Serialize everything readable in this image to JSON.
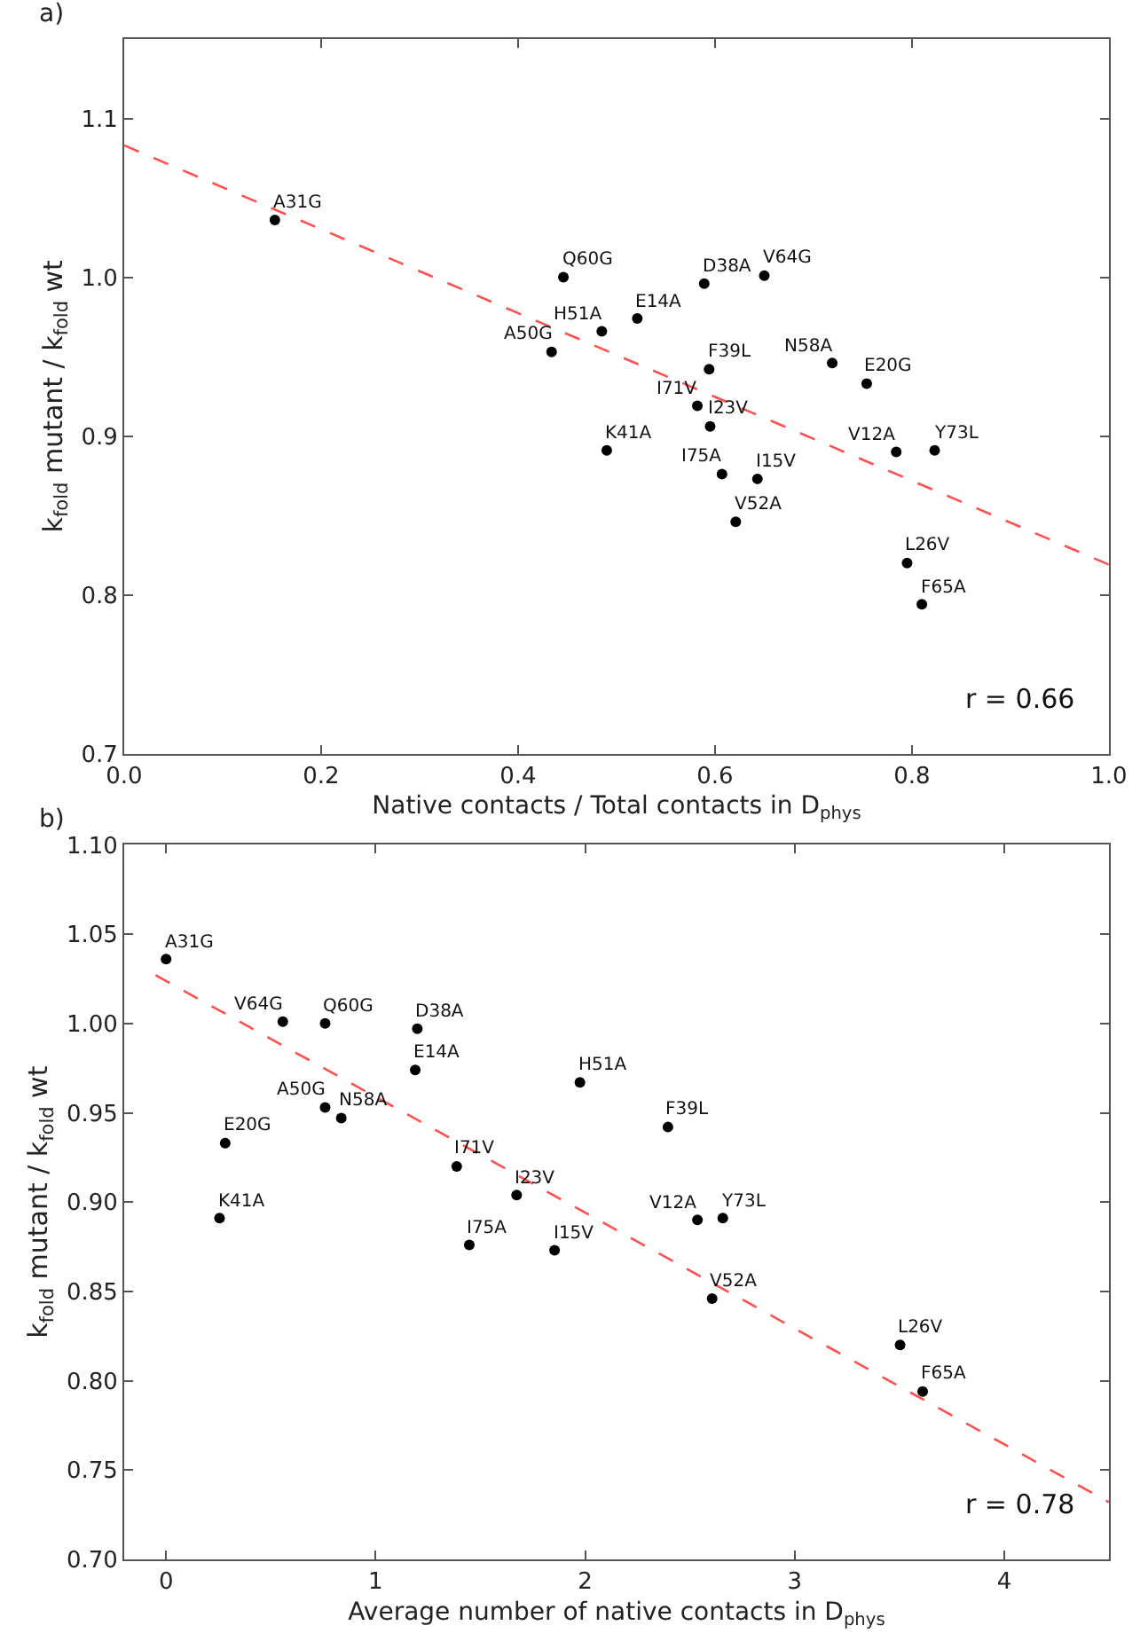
{
  "chart_data": [
    {
      "type": "scatter",
      "title": "a)",
      "xlabel": "Native contacts / Total contacts in D$_{phys}$",
      "ylabel": "k$_{fold}$ mutant / k$_{fold}$ wt",
      "xlim": [
        0,
        1
      ],
      "ylim": [
        0.7,
        1.15
      ],
      "xticks": [
        {
          "value": 0,
          "label": "0.0"
        },
        0.2,
        0.4,
        0.6,
        0.8,
        {
          "value": 1,
          "label": "1.0"
        }
      ],
      "yticks": [
        0.7,
        0.8,
        0.9,
        {
          "value": 1,
          "label": "1.0"
        },
        1.1
      ],
      "series": [
        {
          "marker": "circle",
          "color": "#000000",
          "x": [
            0.153,
            0.446,
            0.589,
            0.65,
            0.521,
            0.485,
            0.434,
            0.594,
            0.719,
            0.754,
            0.582,
            0.595,
            0.49,
            0.607,
            0.643,
            0.621,
            0.784,
            0.823,
            0.795,
            0.81
          ],
          "values": [
            1.036,
            1.0,
            0.996,
            1.001,
            0.974,
            0.966,
            0.953,
            0.942,
            0.946,
            0.933,
            0.919,
            0.906,
            0.891,
            0.876,
            0.873,
            0.846,
            0.89,
            0.891,
            0.82,
            0.794
          ]
        },
        {
          "type": "line",
          "color": "#ff5050",
          "line_style": "dashed",
          "x": [
            0,
            1
          ],
          "values": [
            1.083,
            0.819
          ]
        }
      ],
      "annotations": [
        {
          "text": "A31G",
          "x": 0.153,
          "y": 1.036
        },
        {
          "text": "Q60G",
          "x": 0.446,
          "y": 1.0
        },
        {
          "text": "D38A",
          "x": 0.589,
          "y": 0.996
        },
        {
          "text": "V64G",
          "x": 0.65,
          "y": 1.001
        },
        {
          "text": "E14A",
          "x": 0.521,
          "y": 0.974
        },
        {
          "text": "H51A",
          "x": 0.485,
          "y": 0.966
        },
        {
          "text": "A50G",
          "x": 0.434,
          "y": 0.953
        },
        {
          "text": "F39L",
          "x": 0.594,
          "y": 0.942
        },
        {
          "text": "N58A",
          "x": 0.719,
          "y": 0.946
        },
        {
          "text": "E20G",
          "x": 0.754,
          "y": 0.933
        },
        {
          "text": "I71V",
          "x": 0.582,
          "y": 0.919
        },
        {
          "text": "I23V",
          "x": 0.595,
          "y": 0.906
        },
        {
          "text": "K41A",
          "x": 0.49,
          "y": 0.891
        },
        {
          "text": "I75A",
          "x": 0.607,
          "y": 0.876
        },
        {
          "text": "I15V",
          "x": 0.643,
          "y": 0.873
        },
        {
          "text": "V52A",
          "x": 0.621,
          "y": 0.846
        },
        {
          "text": "V12A",
          "x": 0.784,
          "y": 0.89
        },
        {
          "text": "Y73L",
          "x": 0.823,
          "y": 0.891
        },
        {
          "text": "L26V",
          "x": 0.795,
          "y": 0.82
        },
        {
          "text": "F65A",
          "x": 0.81,
          "y": 0.794
        },
        "r = 0.66"
      ]
    },
    {
      "type": "scatter",
      "title": "b)",
      "xlabel": "Average number of native contacts in D$_{phys}$",
      "ylabel": "k$_{fold}$ mutant / k$_{fold}$ wt",
      "xlim": [
        -0.2,
        4.5
      ],
      "ylim": [
        0.7,
        1.1
      ],
      "xticks": [
        0,
        1,
        2,
        3,
        4
      ],
      "yticks": [
        {
          "value": 0.7,
          "label": "0.70"
        },
        {
          "value": 0.75,
          "label": "0.75"
        },
        {
          "value": 0.8,
          "label": "0.80"
        },
        {
          "value": 0.85,
          "label": "0.85"
        },
        {
          "value": 0.9,
          "label": "0.90"
        },
        {
          "value": 0.95,
          "label": "0.95"
        },
        {
          "value": 1.0,
          "label": "1.00"
        },
        {
          "value": 1.05,
          "label": "1.05"
        },
        {
          "value": 1.1,
          "label": "1.10"
        }
      ],
      "series": [
        {
          "marker": "circle",
          "color": "#000000",
          "x": [
            0.0,
            0.557,
            0.759,
            1.199,
            1.189,
            1.975,
            2.395,
            0.759,
            0.836,
            0.282,
            1.387,
            1.673,
            0.255,
            1.447,
            1.854,
            2.536,
            2.657,
            2.606,
            3.503,
            3.611
          ],
          "values": [
            1.036,
            1.001,
            1.0,
            0.997,
            0.974,
            0.967,
            0.942,
            0.953,
            0.947,
            0.933,
            0.92,
            0.904,
            0.891,
            0.876,
            0.873,
            0.89,
            0.891,
            0.846,
            0.82,
            0.794
          ]
        },
        {
          "type": "line",
          "color": "#ff5050",
          "line_style": "dashed",
          "x": [
            -0.05,
            4.5
          ],
          "values": [
            1.027,
            0.732
          ]
        }
      ],
      "annotations": [
        {
          "text": "A31G",
          "x": 0.0,
          "y": 1.036
        },
        {
          "text": "V64G",
          "x": 0.557,
          "y": 1.001
        },
        {
          "text": "Q60G",
          "x": 0.759,
          "y": 1.0
        },
        {
          "text": "D38A",
          "x": 1.199,
          "y": 0.997
        },
        {
          "text": "E14A",
          "x": 1.189,
          "y": 0.974
        },
        {
          "text": "H51A",
          "x": 1.975,
          "y": 0.967
        },
        {
          "text": "F39L",
          "x": 2.395,
          "y": 0.942
        },
        {
          "text": "A50G",
          "x": 0.759,
          "y": 0.953
        },
        {
          "text": "N58A",
          "x": 0.836,
          "y": 0.947
        },
        {
          "text": "E20G",
          "x": 0.282,
          "y": 0.933
        },
        {
          "text": "I71V",
          "x": 1.387,
          "y": 0.92
        },
        {
          "text": "I23V",
          "x": 1.673,
          "y": 0.904
        },
        {
          "text": "K41A",
          "x": 0.255,
          "y": 0.891
        },
        {
          "text": "I75A",
          "x": 1.447,
          "y": 0.876
        },
        {
          "text": "I15V",
          "x": 1.854,
          "y": 0.873
        },
        {
          "text": "V12A",
          "x": 2.536,
          "y": 0.89
        },
        {
          "text": "Y73L",
          "x": 2.657,
          "y": 0.891
        },
        {
          "text": "V52A",
          "x": 2.606,
          "y": 0.846
        },
        {
          "text": "L26V",
          "x": 3.503,
          "y": 0.82
        },
        {
          "text": "F65A",
          "x": 3.611,
          "y": 0.794
        },
        "r = 0.78"
      ]
    }
  ]
}
